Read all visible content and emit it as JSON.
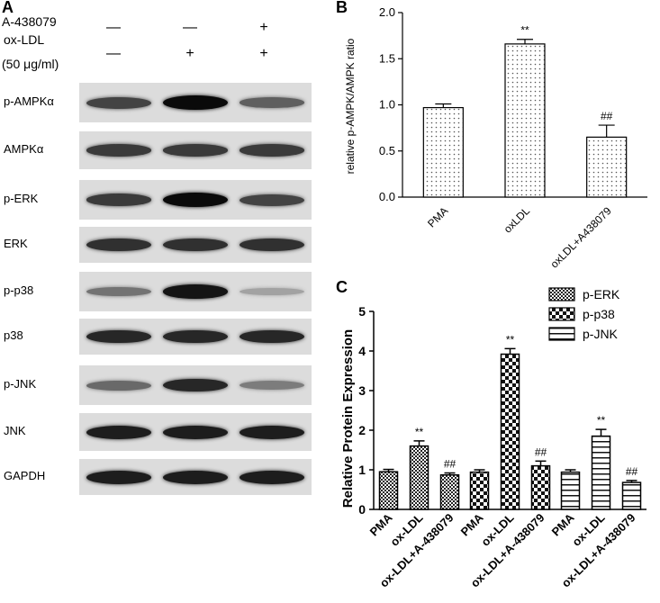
{
  "panel_a": {
    "letter": "A",
    "conditions": [
      {
        "label": "A-438079",
        "signs": [
          "—",
          "—",
          "+"
        ]
      },
      {
        "label": "ox-LDL",
        "signs": [
          "—",
          "+",
          "+"
        ]
      },
      {
        "label": "(50 μg/ml)",
        "signs": []
      }
    ],
    "blots": [
      {
        "label": "p-AMPKα",
        "intensity": [
          0.7,
          1.0,
          0.55
        ]
      },
      {
        "label": "AMPKα",
        "intensity": [
          0.75,
          0.75,
          0.75
        ]
      },
      {
        "label": "p-ERK",
        "intensity": [
          0.75,
          1.0,
          0.7
        ]
      },
      {
        "label": "ERK",
        "intensity": [
          0.8,
          0.8,
          0.8
        ]
      },
      {
        "label": "p-p38",
        "intensity": [
          0.45,
          0.95,
          0.2
        ]
      },
      {
        "label": "p38",
        "intensity": [
          0.85,
          0.85,
          0.85
        ]
      },
      {
        "label": "p-JNK",
        "intensity": [
          0.5,
          0.85,
          0.4
        ]
      },
      {
        "label": "JNK",
        "intensity": [
          0.9,
          0.9,
          0.9
        ]
      },
      {
        "label": "GAPDH",
        "intensity": [
          0.9,
          0.9,
          0.9
        ]
      }
    ]
  },
  "panel_b": {
    "letter": "B",
    "ylabel": "relative p-AMPK/AMPK ratio",
    "yticks": [
      "0.0",
      "0.5",
      "1.0",
      "1.5",
      "2.0"
    ],
    "categories": [
      "PMA",
      "oxLDL",
      "oxLDL+A438079"
    ],
    "annotations": [
      "",
      "**",
      "##"
    ]
  },
  "panel_c": {
    "letter": "C",
    "ylabel": "Relative Protein Expression",
    "yticks": [
      "0",
      "1",
      "2",
      "3",
      "4",
      "5"
    ],
    "legend": [
      "p-ERK",
      "p-p38",
      "p-JNK"
    ],
    "group_categories": [
      "PMA",
      "ox-LDL",
      "ox-LDL+A-438079"
    ],
    "annotations": [
      "",
      "**",
      "##"
    ]
  },
  "colors": {
    "bar_fill": "#ffffff",
    "ink": "#000000",
    "blot_bg": "#dcdcdc"
  },
  "chart_data": [
    {
      "type": "bar",
      "categories": [
        "PMA",
        "oxLDL",
        "oxLDL+A438079"
      ],
      "values": [
        0.97,
        1.66,
        0.65
      ],
      "errors": [
        0.04,
        0.05,
        0.13
      ],
      "ylabel": "relative p-AMPK/AMPK ratio",
      "ylim": [
        0,
        2.0
      ],
      "pattern": "dots"
    },
    {
      "type": "bar",
      "categories": [
        "PMA",
        "ox-LDL",
        "ox-LDL+A-438079"
      ],
      "series": [
        {
          "name": "p-ERK",
          "values": [
            0.95,
            1.6,
            0.87
          ],
          "errors": [
            0.06,
            0.13,
            0.05
          ],
          "pattern": "checker-small"
        },
        {
          "name": "p-p38",
          "values": [
            0.94,
            3.92,
            1.1
          ],
          "errors": [
            0.06,
            0.14,
            0.12
          ],
          "pattern": "checker-large"
        },
        {
          "name": "p-JNK",
          "values": [
            0.94,
            1.85,
            0.68
          ],
          "errors": [
            0.06,
            0.17,
            0.05
          ],
          "pattern": "horizontal"
        }
      ],
      "ylabel": "Relative Protein Expression",
      "ylim": [
        0,
        5
      ]
    }
  ]
}
